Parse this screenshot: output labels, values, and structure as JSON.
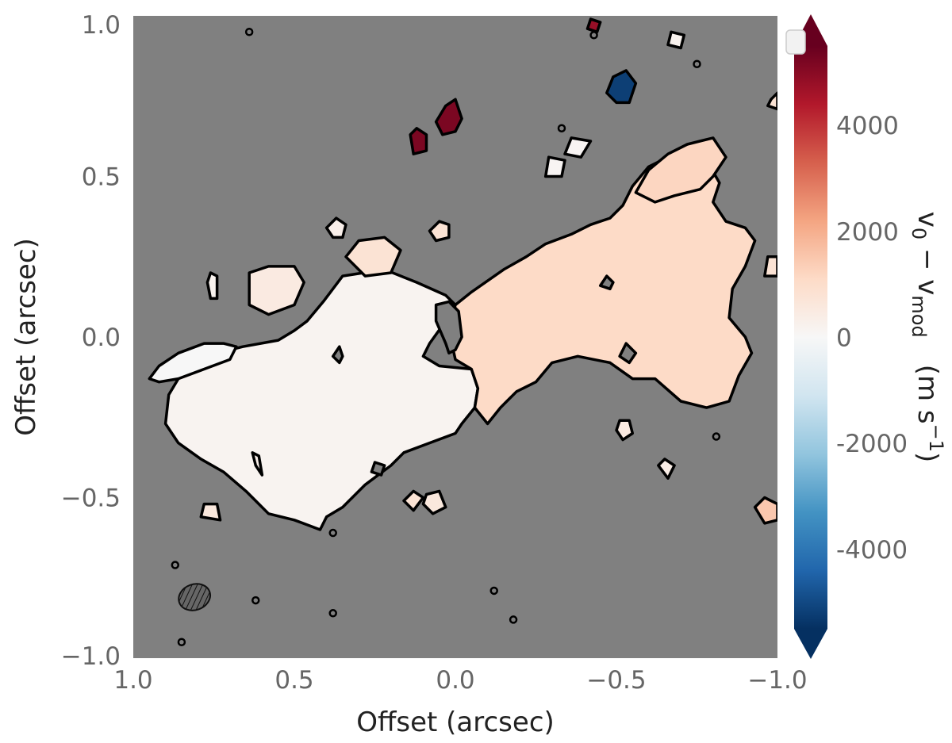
{
  "chart_data": {
    "type": "heatmap",
    "title": "",
    "xlabel": "Offset (arcsec)",
    "ylabel": "Offset (arcsec)",
    "xlim": [
      1.0,
      -1.0
    ],
    "ylim": [
      -1.0,
      1.0
    ],
    "x_ticks": [
      1.0,
      0.5,
      0.0,
      -0.5,
      -1.0
    ],
    "x_tick_labels": [
      "1.0",
      "0.5",
      "0.0",
      "−0.5",
      "−1.0"
    ],
    "y_ticks": [
      1.0,
      0.5,
      0.0,
      -0.5,
      -1.0
    ],
    "y_tick_labels": [
      "1.0",
      "0.5",
      "0.0",
      "−0.5",
      "−1.0"
    ],
    "grid": false,
    "background_color": "#808080",
    "colorbar": {
      "label_main": "v",
      "label_sub0": "0",
      "label_minus": " − v",
      "label_sub1": "mod",
      "label_unit": "(m s",
      "label_exp": "−1",
      "label_close": ")",
      "colormap": "RdBu_r",
      "range": [
        -5500,
        5500
      ],
      "extend": "both",
      "ticks": [
        4000,
        2000,
        0,
        -2000,
        -4000
      ],
      "tick_labels": [
        "4000",
        "2000",
        "0",
        "-2000",
        "-4000"
      ]
    },
    "regions": [
      {
        "name": "main-disk-east",
        "value": 150,
        "points": [
          [
            0.89,
            -0.18
          ],
          [
            0.86,
            -0.13
          ],
          [
            0.78,
            -0.06
          ],
          [
            0.66,
            -0.03
          ],
          [
            0.55,
            -0.01
          ],
          [
            0.5,
            0.02
          ],
          [
            0.46,
            0.05
          ],
          [
            0.41,
            0.11
          ],
          [
            0.35,
            0.19
          ],
          [
            0.22,
            0.21
          ],
          [
            0.12,
            0.17
          ],
          [
            0.03,
            0.13
          ],
          [
            0.0,
            0.1
          ],
          [
            0.03,
            0.05
          ],
          [
            0.08,
            -0.02
          ],
          [
            0.1,
            -0.06
          ],
          [
            0.05,
            -0.09
          ],
          [
            -0.05,
            -0.1
          ],
          [
            -0.07,
            -0.16
          ],
          [
            -0.06,
            -0.22
          ],
          [
            -0.02,
            -0.27
          ],
          [
            0.0,
            -0.3
          ],
          [
            0.08,
            -0.33
          ],
          [
            0.16,
            -0.36
          ],
          [
            0.2,
            -0.4
          ],
          [
            0.28,
            -0.46
          ],
          [
            0.35,
            -0.53
          ],
          [
            0.4,
            -0.56
          ],
          [
            0.42,
            -0.6
          ],
          [
            0.5,
            -0.57
          ],
          [
            0.58,
            -0.55
          ],
          [
            0.65,
            -0.48
          ],
          [
            0.72,
            -0.42
          ],
          [
            0.79,
            -0.38
          ],
          [
            0.86,
            -0.33
          ],
          [
            0.9,
            -0.27
          ]
        ]
      },
      {
        "name": "main-disk-west",
        "value": 1100,
        "points": [
          [
            0.0,
            0.1
          ],
          [
            -0.05,
            0.14
          ],
          [
            -0.15,
            0.21
          ],
          [
            -0.22,
            0.25
          ],
          [
            -0.28,
            0.29
          ],
          [
            -0.36,
            0.32
          ],
          [
            -0.42,
            0.35
          ],
          [
            -0.48,
            0.37
          ],
          [
            -0.52,
            0.41
          ],
          [
            -0.55,
            0.47
          ],
          [
            -0.6,
            0.53
          ],
          [
            -0.7,
            0.58
          ],
          [
            -0.78,
            0.55
          ],
          [
            -0.82,
            0.48
          ],
          [
            -0.8,
            0.42
          ],
          [
            -0.84,
            0.36
          ],
          [
            -0.9,
            0.34
          ],
          [
            -0.93,
            0.3
          ],
          [
            -0.9,
            0.22
          ],
          [
            -0.86,
            0.15
          ],
          [
            -0.85,
            0.06
          ],
          [
            -0.9,
            0.0
          ],
          [
            -0.92,
            -0.05
          ],
          [
            -0.88,
            -0.12
          ],
          [
            -0.85,
            -0.2
          ],
          [
            -0.78,
            -0.22
          ],
          [
            -0.7,
            -0.2
          ],
          [
            -0.62,
            -0.13
          ],
          [
            -0.55,
            -0.13
          ],
          [
            -0.48,
            -0.08
          ],
          [
            -0.38,
            -0.06
          ],
          [
            -0.3,
            -0.08
          ],
          [
            -0.25,
            -0.14
          ],
          [
            -0.19,
            -0.17
          ],
          [
            -0.14,
            -0.22
          ],
          [
            -0.1,
            -0.27
          ],
          [
            -0.06,
            -0.22
          ],
          [
            -0.07,
            -0.16
          ],
          [
            -0.05,
            -0.1
          ],
          [
            0.0,
            -0.07
          ],
          [
            0.02,
            0.02
          ]
        ]
      },
      {
        "name": "west-streamer",
        "value": 1200,
        "points": [
          [
            -0.56,
            0.45
          ],
          [
            -0.6,
            0.52
          ],
          [
            -0.66,
            0.57
          ],
          [
            -0.72,
            0.6
          ],
          [
            -0.8,
            0.62
          ],
          [
            -0.84,
            0.56
          ],
          [
            -0.8,
            0.5
          ],
          [
            -0.76,
            0.46
          ],
          [
            -0.68,
            0.44
          ],
          [
            -0.62,
            0.42
          ]
        ]
      },
      {
        "name": "arm-east",
        "value": 0,
        "points": [
          [
            0.95,
            -0.13
          ],
          [
            0.92,
            -0.09
          ],
          [
            0.86,
            -0.05
          ],
          [
            0.78,
            -0.02
          ],
          [
            0.72,
            -0.02
          ],
          [
            0.68,
            -0.03
          ],
          [
            0.7,
            -0.07
          ],
          [
            0.78,
            -0.1
          ],
          [
            0.86,
            -0.13
          ],
          [
            0.92,
            -0.14
          ]
        ]
      },
      {
        "name": "blob-northeast",
        "value": 500,
        "points": [
          [
            0.64,
            0.2
          ],
          [
            0.58,
            0.22
          ],
          [
            0.5,
            0.22
          ],
          [
            0.47,
            0.17
          ],
          [
            0.5,
            0.1
          ],
          [
            0.58,
            0.07
          ],
          [
            0.64,
            0.1
          ]
        ]
      },
      {
        "name": "blob-north",
        "value": 800,
        "points": [
          [
            0.34,
            0.25
          ],
          [
            0.3,
            0.3
          ],
          [
            0.22,
            0.31
          ],
          [
            0.17,
            0.27
          ],
          [
            0.2,
            0.2
          ],
          [
            0.28,
            0.19
          ]
        ]
      },
      {
        "name": "blob-north-2",
        "value": 800,
        "points": [
          [
            0.08,
            0.33
          ],
          [
            0.05,
            0.36
          ],
          [
            0.02,
            0.35
          ],
          [
            0.02,
            0.31
          ],
          [
            0.06,
            0.3
          ]
        ]
      },
      {
        "name": "blob-ne-small",
        "value": 300,
        "points": [
          [
            0.4,
            0.34
          ],
          [
            0.37,
            0.37
          ],
          [
            0.34,
            0.35
          ],
          [
            0.35,
            0.31
          ],
          [
            0.38,
            0.31
          ]
        ]
      },
      {
        "name": "blob-east-small",
        "value": 200,
        "points": [
          [
            0.77,
            0.17
          ],
          [
            0.76,
            0.2
          ],
          [
            0.74,
            0.19
          ],
          [
            0.74,
            0.12
          ],
          [
            0.76,
            0.12
          ]
        ]
      },
      {
        "name": "cloud-red-1",
        "value": 5200,
        "points": [
          [
            0.0,
            0.74
          ],
          [
            0.03,
            0.72
          ],
          [
            0.06,
            0.67
          ],
          [
            0.04,
            0.63
          ],
          [
            0.0,
            0.64
          ],
          [
            -0.02,
            0.68
          ]
        ]
      },
      {
        "name": "cloud-red-2",
        "value": 5200,
        "points": [
          [
            0.12,
            0.65
          ],
          [
            0.14,
            0.63
          ],
          [
            0.13,
            0.57
          ],
          [
            0.09,
            0.58
          ],
          [
            0.09,
            0.63
          ]
        ]
      },
      {
        "name": "cloud-blue",
        "value": -5200,
        "points": [
          [
            -0.49,
            0.81
          ],
          [
            -0.53,
            0.83
          ],
          [
            -0.56,
            0.79
          ],
          [
            -0.54,
            0.73
          ],
          [
            -0.5,
            0.73
          ],
          [
            -0.47,
            0.76
          ]
        ]
      },
      {
        "name": "cloud-red-top",
        "value": 4800,
        "points": [
          [
            -0.42,
            0.99
          ],
          [
            -0.45,
            0.98
          ],
          [
            -0.44,
            0.95
          ],
          [
            -0.41,
            0.96
          ]
        ]
      },
      {
        "name": "cloud-white-1",
        "value": 100,
        "points": [
          [
            -0.36,
            0.62
          ],
          [
            -0.42,
            0.61
          ],
          [
            -0.39,
            0.56
          ],
          [
            -0.34,
            0.57
          ]
        ]
      },
      {
        "name": "cloud-white-2",
        "value": 100,
        "points": [
          [
            -0.29,
            0.56
          ],
          [
            -0.34,
            0.55
          ],
          [
            -0.33,
            0.5
          ],
          [
            -0.28,
            0.5
          ]
        ]
      },
      {
        "name": "cloud-white-3",
        "value": 200,
        "points": [
          [
            -0.67,
            0.95
          ],
          [
            -0.71,
            0.94
          ],
          [
            -0.7,
            0.9
          ],
          [
            -0.66,
            0.91
          ]
        ]
      },
      {
        "name": "cloud-east-edge",
        "value": 800,
        "points": [
          [
            -0.98,
            0.74
          ],
          [
            -1.0,
            0.76
          ],
          [
            -1.0,
            0.71
          ],
          [
            -0.97,
            0.72
          ]
        ]
      },
      {
        "name": "cloud-east-edge-2",
        "value": 800,
        "points": [
          [
            -0.97,
            0.25
          ],
          [
            -1.0,
            0.25
          ],
          [
            -1.0,
            0.19
          ],
          [
            -0.96,
            0.19
          ]
        ]
      },
      {
        "name": "cloud-south-1",
        "value": 800,
        "points": [
          [
            0.13,
            -0.54
          ],
          [
            0.16,
            -0.51
          ],
          [
            0.13,
            -0.48
          ],
          [
            0.1,
            -0.5
          ]
        ]
      },
      {
        "name": "cloud-south-2",
        "value": 600,
        "points": [
          [
            0.09,
            -0.49
          ],
          [
            0.1,
            -0.52
          ],
          [
            0.07,
            -0.55
          ],
          [
            0.03,
            -0.53
          ],
          [
            0.05,
            -0.48
          ]
        ]
      },
      {
        "name": "cloud-south-3",
        "value": 500,
        "points": [
          [
            -0.5,
            -0.29
          ],
          [
            -0.51,
            -0.26
          ],
          [
            -0.54,
            -0.26
          ],
          [
            -0.55,
            -0.3
          ],
          [
            -0.52,
            -0.32
          ]
        ]
      },
      {
        "name": "cloud-se-1",
        "value": 400,
        "points": [
          [
            -0.63,
            -0.4
          ],
          [
            -0.65,
            -0.38
          ],
          [
            -0.68,
            -0.4
          ],
          [
            -0.66,
            -0.44
          ]
        ]
      },
      {
        "name": "cloud-se-2",
        "value": 1500,
        "points": [
          [
            -0.93,
            -0.53
          ],
          [
            -0.96,
            -0.5
          ],
          [
            -1.0,
            -0.52
          ],
          [
            -1.0,
            -0.57
          ],
          [
            -0.96,
            -0.58
          ]
        ]
      },
      {
        "name": "cloud-sw-1",
        "value": 600,
        "points": [
          [
            0.74,
            -0.52
          ],
          [
            0.78,
            -0.52
          ],
          [
            0.79,
            -0.56
          ],
          [
            0.73,
            -0.57
          ]
        ]
      },
      {
        "name": "cloud-sw-2",
        "value": 300,
        "points": [
          [
            0.63,
            -0.36
          ],
          [
            0.62,
            -0.4
          ],
          [
            0.6,
            -0.43
          ],
          [
            0.61,
            -0.37
          ]
        ]
      }
    ],
    "holes": [
      {
        "name": "core-hole",
        "points": [
          [
            0.02,
            0.11
          ],
          [
            0.06,
            0.1
          ],
          [
            0.06,
            0.05
          ],
          [
            0.03,
            -0.02
          ],
          [
            0.02,
            -0.05
          ],
          [
            0.0,
            -0.04
          ],
          [
            -0.02,
            0.0
          ],
          [
            -0.01,
            0.08
          ]
        ]
      },
      {
        "name": "hole-west-1",
        "points": [
          [
            -0.47,
            0.19
          ],
          [
            -0.49,
            0.17
          ],
          [
            -0.48,
            0.15
          ],
          [
            -0.45,
            0.16
          ]
        ]
      },
      {
        "name": "hole-west-2",
        "points": [
          [
            -0.53,
            -0.02
          ],
          [
            -0.56,
            -0.05
          ],
          [
            -0.54,
            -0.08
          ],
          [
            -0.51,
            -0.06
          ]
        ]
      },
      {
        "name": "hole-east",
        "points": [
          [
            0.35,
            -0.06
          ],
          [
            0.36,
            -0.03
          ],
          [
            0.38,
            -0.06
          ],
          [
            0.36,
            -0.08
          ]
        ]
      },
      {
        "name": "hole-south",
        "points": [
          [
            0.22,
            -0.4
          ],
          [
            0.25,
            -0.39
          ],
          [
            0.26,
            -0.42
          ],
          [
            0.23,
            -0.43
          ]
        ]
      }
    ],
    "small_contours": [
      [
        0.64,
        0.95
      ],
      [
        -0.43,
        0.94
      ],
      [
        -0.33,
        0.65
      ],
      [
        -0.75,
        0.85
      ],
      [
        0.87,
        -0.71
      ],
      [
        0.62,
        -0.82
      ],
      [
        0.38,
        -0.86
      ],
      [
        -0.12,
        -0.79
      ],
      [
        -0.18,
        -0.88
      ],
      [
        0.85,
        -0.95
      ],
      [
        0.38,
        -0.61
      ],
      [
        -0.81,
        -0.31
      ]
    ],
    "beam": {
      "x": 0.81,
      "y": -0.81,
      "width": 0.1,
      "height": 0.08,
      "angle": -20
    }
  }
}
